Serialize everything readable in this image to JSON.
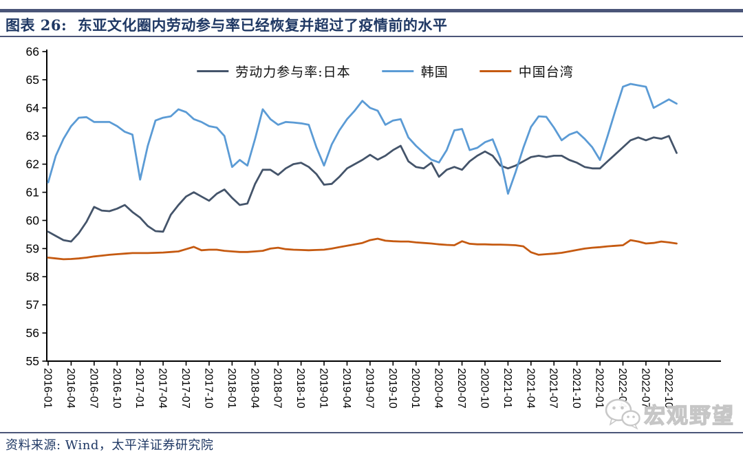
{
  "header": {
    "title": "图表 26:  东亚文化圈内劳动参与率已经恢复并超过了疫情前的水平"
  },
  "footer": {
    "source": "资料来源: Wind，太平洋证券研究院"
  },
  "watermark": {
    "icon": "wechat-icon",
    "text": "宏观野望"
  },
  "colors": {
    "accent_bar": "#4a5578",
    "title_text": "#1f3864",
    "axis": "#000000",
    "watermark_gray": "#c3c3c3"
  },
  "chart_data": {
    "type": "line",
    "title": "",
    "xlabel": "",
    "ylabel": "",
    "ylim": [
      55,
      66
    ],
    "y_tick_step": 1,
    "grid": false,
    "legend_position": "top-center",
    "x": [
      "2016-01",
      "2016-02",
      "2016-03",
      "2016-04",
      "2016-05",
      "2016-06",
      "2016-07",
      "2016-08",
      "2016-09",
      "2016-10",
      "2016-11",
      "2016-12",
      "2017-01",
      "2017-02",
      "2017-03",
      "2017-04",
      "2017-05",
      "2017-06",
      "2017-07",
      "2017-08",
      "2017-09",
      "2017-10",
      "2017-11",
      "2017-12",
      "2018-01",
      "2018-02",
      "2018-03",
      "2018-04",
      "2018-05",
      "2018-06",
      "2018-07",
      "2018-08",
      "2018-09",
      "2018-10",
      "2018-11",
      "2018-12",
      "2019-01",
      "2019-02",
      "2019-03",
      "2019-04",
      "2019-05",
      "2019-06",
      "2019-07",
      "2019-08",
      "2019-09",
      "2019-10",
      "2019-11",
      "2019-12",
      "2020-01",
      "2020-02",
      "2020-03",
      "2020-04",
      "2020-05",
      "2020-06",
      "2020-07",
      "2020-08",
      "2020-09",
      "2020-10",
      "2020-11",
      "2020-12",
      "2021-01",
      "2021-02",
      "2021-03",
      "2021-04",
      "2021-05",
      "2021-06",
      "2021-07",
      "2021-08",
      "2021-09",
      "2021-10",
      "2021-11",
      "2021-12",
      "2022-01",
      "2022-02",
      "2022-03",
      "2022-04",
      "2022-05",
      "2022-06",
      "2022-07",
      "2022-08",
      "2022-09",
      "2022-10",
      "2022-11"
    ],
    "x_tick_labels": [
      "2016-01",
      "2016-04",
      "2016-07",
      "2016-10",
      "2017-01",
      "2017-04",
      "2017-07",
      "2017-10",
      "2018-01",
      "2018-04",
      "2018-07",
      "2018-10",
      "2019-01",
      "2019-04",
      "2019-07",
      "2019-10",
      "2020-01",
      "2020-04",
      "2020-07",
      "2020-10",
      "2021-01",
      "2021-04",
      "2021-07",
      "2021-10",
      "2022-01",
      "2022-04",
      "2022-07",
      "2022-10"
    ],
    "series": [
      {
        "key": "japan",
        "name": "劳动力参与率:日本",
        "color": "#44546A",
        "values": [
          59.6,
          59.45,
          59.3,
          59.25,
          59.55,
          59.95,
          60.48,
          60.35,
          60.33,
          60.42,
          60.55,
          60.3,
          60.1,
          59.8,
          59.62,
          59.6,
          60.2,
          60.55,
          60.85,
          61.0,
          60.85,
          60.7,
          60.95,
          61.1,
          60.8,
          60.55,
          60.6,
          61.3,
          61.8,
          61.8,
          61.62,
          61.85,
          62.0,
          62.05,
          61.9,
          61.65,
          61.27,
          61.3,
          61.55,
          61.85,
          62.0,
          62.15,
          62.33,
          62.16,
          62.3,
          62.5,
          62.65,
          62.1,
          61.9,
          61.85,
          62.05,
          61.55,
          61.8,
          61.9,
          61.8,
          62.1,
          62.3,
          62.45,
          62.3,
          61.95,
          61.85,
          61.95,
          62.1,
          62.25,
          62.3,
          62.25,
          62.3,
          62.3,
          62.15,
          62.05,
          61.9,
          61.85,
          61.85,
          62.1,
          62.35,
          62.6,
          62.85,
          62.95,
          62.85,
          62.95,
          62.9,
          63.0,
          62.4
        ]
      },
      {
        "key": "korea",
        "name": "韩国",
        "color": "#5B9BD5",
        "values": [
          61.35,
          62.3,
          62.9,
          63.35,
          63.65,
          63.67,
          63.5,
          63.5,
          63.5,
          63.35,
          63.15,
          63.05,
          61.45,
          62.65,
          63.55,
          63.65,
          63.7,
          63.95,
          63.85,
          63.6,
          63.5,
          63.35,
          63.3,
          63.0,
          61.9,
          62.15,
          61.95,
          62.9,
          63.95,
          63.6,
          63.4,
          63.5,
          63.48,
          63.45,
          63.4,
          62.6,
          61.95,
          62.7,
          63.2,
          63.6,
          63.9,
          64.25,
          64.0,
          63.9,
          63.4,
          63.55,
          63.6,
          62.95,
          62.65,
          62.4,
          62.16,
          62.06,
          62.5,
          63.2,
          63.25,
          62.5,
          62.58,
          62.78,
          62.88,
          62.2,
          60.95,
          61.72,
          62.58,
          63.32,
          63.7,
          63.68,
          63.3,
          62.85,
          63.05,
          63.15,
          62.9,
          62.6,
          62.15,
          63.0,
          63.9,
          64.75,
          64.85,
          64.8,
          64.75,
          64.0,
          64.15,
          64.3,
          64.15
        ]
      },
      {
        "key": "taiwan",
        "name": "中国台湾",
        "color": "#C55A11",
        "values": [
          58.68,
          58.65,
          58.62,
          58.63,
          58.65,
          58.68,
          58.72,
          58.75,
          58.78,
          58.8,
          58.82,
          58.84,
          58.84,
          58.84,
          58.85,
          58.86,
          58.88,
          58.9,
          58.98,
          59.06,
          58.94,
          58.96,
          58.96,
          58.92,
          58.9,
          58.88,
          58.88,
          58.9,
          58.92,
          59.0,
          59.03,
          58.98,
          58.96,
          58.95,
          58.94,
          58.95,
          58.96,
          59.0,
          59.05,
          59.1,
          59.15,
          59.2,
          59.3,
          59.35,
          59.28,
          59.26,
          59.25,
          59.25,
          59.22,
          59.2,
          59.18,
          59.15,
          59.13,
          59.12,
          59.26,
          59.17,
          59.15,
          59.15,
          59.14,
          59.14,
          59.13,
          59.12,
          59.08,
          58.87,
          58.78,
          58.8,
          58.82,
          58.85,
          58.9,
          58.95,
          59.0,
          59.03,
          59.05,
          59.08,
          59.1,
          59.12,
          59.3,
          59.25,
          59.18,
          59.2,
          59.25,
          59.22,
          59.18
        ]
      }
    ]
  }
}
